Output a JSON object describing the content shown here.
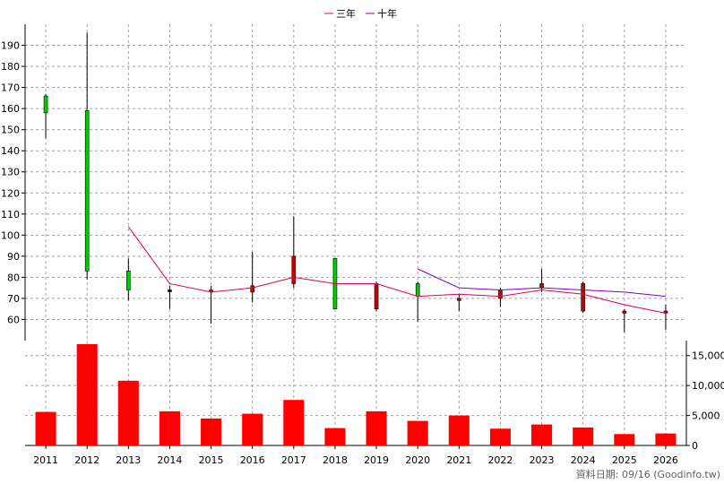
{
  "chart_data": {
    "type": "candlestick",
    "legend": {
      "placement": "top-center",
      "entries": [
        "三年",
        "十年"
      ]
    },
    "x_labels": [
      "2011",
      "2012",
      "2013",
      "2014",
      "2015",
      "2016",
      "2017",
      "2018",
      "2019",
      "2020",
      "2021",
      "2022",
      "2023",
      "2024",
      "2025",
      "2026"
    ],
    "price_axis": {
      "range": [
        50,
        200
      ],
      "ticks": [
        60,
        70,
        80,
        90,
        100,
        110,
        120,
        130,
        140,
        150,
        160,
        170,
        180,
        190
      ],
      "side": "left"
    },
    "volume_axis": {
      "range": [
        0,
        17500
      ],
      "ticks": [
        0,
        5000,
        10000,
        15000
      ],
      "tick_labels": [
        "0",
        "5,000",
        "10,000",
        "15,000"
      ],
      "side": "right"
    },
    "grid": true,
    "candles": [
      {
        "year": "2011",
        "open": 158,
        "close": 166,
        "high": 167,
        "low": 146
      },
      {
        "year": "2012",
        "open": 83,
        "close": 159,
        "high": 196,
        "low": 79
      },
      {
        "year": "2013",
        "open": 74,
        "close": 83,
        "high": 89,
        "low": 69
      },
      {
        "year": "2014",
        "open": 74,
        "close": 74,
        "high": 76,
        "low": 65
      },
      {
        "year": "2015",
        "open": 74,
        "close": 73,
        "high": 76,
        "low": 58
      },
      {
        "year": "2016",
        "open": 76,
        "close": 73,
        "high": 92,
        "low": 68
      },
      {
        "year": "2017",
        "open": 90,
        "close": 77,
        "high": 109,
        "low": 75
      },
      {
        "year": "2018",
        "open": 65,
        "close": 89,
        "high": 89,
        "low": 65
      },
      {
        "year": "2019",
        "open": 77,
        "close": 65,
        "high": 78,
        "low": 64
      },
      {
        "year": "2020",
        "open": 71,
        "close": 77,
        "high": 78,
        "low": 59
      },
      {
        "year": "2021",
        "open": 70,
        "close": 69,
        "high": 72,
        "low": 64
      },
      {
        "year": "2022",
        "open": 74,
        "close": 70,
        "high": 75,
        "low": 66
      },
      {
        "year": "2023",
        "open": 77,
        "close": 75,
        "high": 84,
        "low": 73
      },
      {
        "year": "2024",
        "open": 77,
        "close": 64,
        "high": 78,
        "low": 63
      },
      {
        "year": "2025",
        "open": 64,
        "close": 63,
        "high": 65,
        "low": 54
      },
      {
        "year": "2026",
        "open": 64,
        "close": 63,
        "high": 67,
        "low": 55
      }
    ],
    "series": [
      {
        "name": "三年",
        "color": "#e0005a",
        "start_index": 2,
        "values": [
          104,
          77,
          73,
          75,
          80,
          77,
          77,
          71,
          72,
          71,
          74,
          72,
          67,
          63
        ]
      },
      {
        "name": "十年",
        "color": "#8000c0",
        "start_index": 9,
        "values": [
          84,
          75,
          74,
          75,
          74,
          73,
          71
        ]
      }
    ],
    "volume": [
      5600,
      16900,
      10800,
      5700,
      4500,
      5300,
      7600,
      2900,
      5700,
      4100,
      5000,
      2800,
      3500,
      3000,
      1900,
      2000
    ],
    "colors": {
      "up": "#00cc00",
      "down": "#cc0000",
      "volume": "#ff0000",
      "grid": "#a0a0a0"
    }
  },
  "footer": {
    "text": "資料日期: 09/16  (Goodinfo.tw)"
  }
}
